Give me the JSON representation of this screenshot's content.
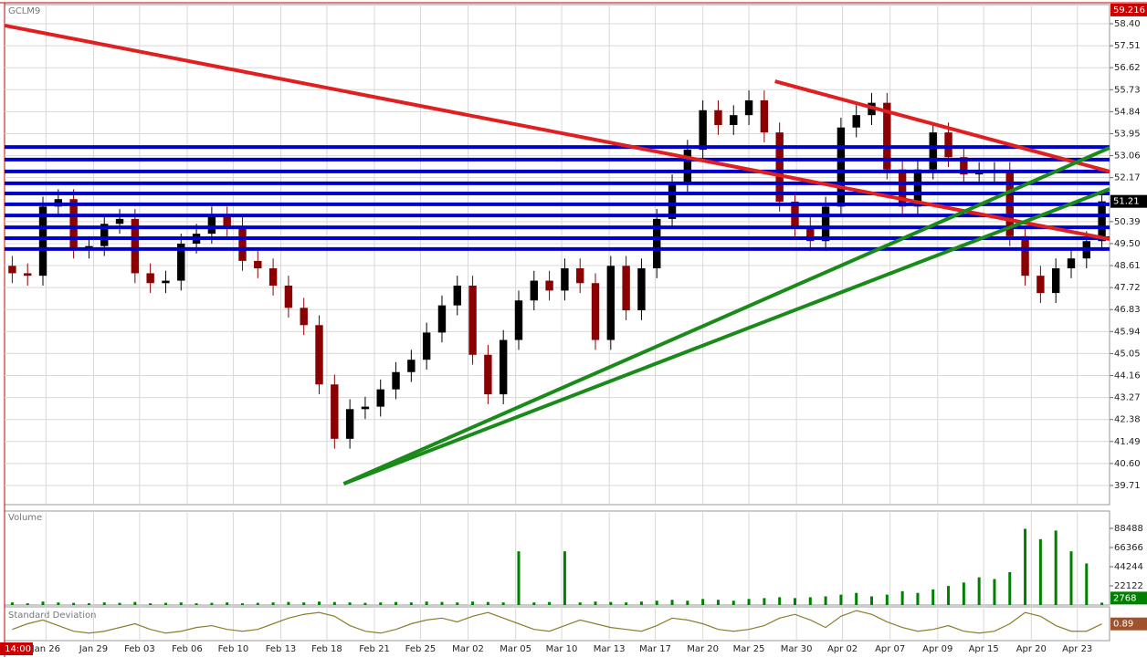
{
  "chart_data": {
    "type": "candlestick",
    "symbol": "GCLM9",
    "volume_title": "Volume",
    "std_title": "Standard Deviation",
    "cursor_label": "14:00",
    "top_value": 59.216,
    "last_price": 51.21,
    "last_volume": 2768,
    "last_std": 0.89,
    "up_color": "#000000",
    "down_color": "#8b0000",
    "grid": true,
    "ylim": [
      38.934,
      59.176
    ],
    "yticks": [
      {
        "value": 58.4,
        "label": "58.40"
      },
      57.51,
      56.62,
      55.73,
      54.84,
      53.95,
      53.06,
      52.17,
      50.39,
      {
        "value": 49.5,
        "label": "49.50"
      },
      48.61,
      47.72,
      46.83,
      45.94,
      45.05,
      44.16,
      43.27,
      42.38,
      41.49,
      {
        "value": 40.6,
        "label": "40.60"
      },
      39.71
    ],
    "xlim": [
      -0.5,
      71.5
    ],
    "xticks": [
      {
        "value": 2.2,
        "label": "Jan 26"
      },
      {
        "value": 5.3,
        "label": "Jan 29"
      },
      {
        "value": 8.3,
        "label": "Feb 03"
      },
      {
        "value": 11.4,
        "label": "Feb 06"
      },
      {
        "value": 14.4,
        "label": "Feb 10"
      },
      {
        "value": 17.5,
        "label": "Feb 13"
      },
      {
        "value": 20.5,
        "label": "Feb 18"
      },
      {
        "value": 23.6,
        "label": "Feb 21"
      },
      {
        "value": 26.6,
        "label": "Feb 25"
      },
      {
        "value": 29.7,
        "label": "Mar 02"
      },
      {
        "value": 32.8,
        "label": "Mar 05"
      },
      {
        "value": 35.8,
        "label": "Mar 10"
      },
      {
        "value": 38.9,
        "label": "Mar 13"
      },
      {
        "value": 41.9,
        "label": "Mar 17"
      },
      {
        "value": 45.0,
        "label": "Mar 20"
      },
      {
        "value": 48.0,
        "label": "Mar 25"
      },
      {
        "value": 51.1,
        "label": "Mar 30"
      },
      {
        "value": 54.1,
        "label": "Apr 02"
      },
      {
        "value": 57.2,
        "label": "Apr 07"
      },
      {
        "value": 60.3,
        "label": "Apr 09"
      },
      {
        "value": 63.3,
        "label": "Apr 15"
      },
      {
        "value": 66.4,
        "label": "Apr 20"
      },
      {
        "value": 69.4,
        "label": "Apr 23"
      }
    ],
    "ohlc": [
      [
        48.6,
        49.0,
        47.9,
        48.3
      ],
      [
        48.3,
        48.7,
        47.8,
        48.2
      ],
      [
        48.2,
        51.4,
        47.8,
        51.0
      ],
      [
        51.0,
        51.7,
        50.6,
        51.3
      ],
      [
        51.3,
        51.7,
        48.9,
        49.3
      ],
      [
        49.3,
        49.8,
        48.9,
        49.4
      ],
      [
        49.4,
        50.7,
        49.0,
        50.3
      ],
      [
        50.3,
        50.9,
        49.9,
        50.5
      ],
      [
        50.5,
        50.9,
        47.9,
        48.3
      ],
      [
        48.3,
        48.7,
        47.5,
        47.9
      ],
      [
        47.9,
        48.4,
        47.5,
        48.0
      ],
      [
        48.0,
        49.9,
        47.6,
        49.5
      ],
      [
        49.5,
        50.3,
        49.1,
        49.9
      ],
      [
        49.9,
        51.0,
        49.5,
        50.6
      ],
      [
        50.6,
        51.0,
        49.8,
        50.2
      ],
      [
        50.2,
        50.6,
        48.4,
        48.8
      ],
      [
        48.8,
        49.2,
        48.1,
        48.5
      ],
      [
        48.5,
        48.9,
        47.4,
        47.8
      ],
      [
        47.8,
        48.2,
        46.5,
        46.9
      ],
      [
        46.9,
        47.3,
        45.8,
        46.2
      ],
      [
        46.2,
        46.6,
        43.4,
        43.8
      ],
      [
        43.8,
        44.2,
        41.2,
        41.6
      ],
      [
        41.6,
        43.2,
        41.2,
        42.8
      ],
      [
        42.8,
        43.3,
        42.4,
        42.9
      ],
      [
        42.9,
        44.0,
        42.5,
        43.6
      ],
      [
        43.6,
        44.7,
        43.2,
        44.3
      ],
      [
        44.3,
        45.2,
        43.9,
        44.8
      ],
      [
        44.8,
        46.3,
        44.4,
        45.9
      ],
      [
        45.9,
        47.4,
        45.5,
        47.0
      ],
      [
        47.0,
        48.2,
        46.6,
        47.8
      ],
      [
        47.8,
        48.2,
        44.6,
        45.0
      ],
      [
        45.0,
        45.4,
        43.0,
        43.4
      ],
      [
        43.4,
        46.0,
        43.0,
        45.6
      ],
      [
        45.6,
        47.6,
        45.2,
        47.2
      ],
      [
        47.2,
        48.4,
        46.8,
        48.0
      ],
      [
        48.0,
        48.4,
        47.2,
        47.6
      ],
      [
        47.6,
        48.9,
        47.2,
        48.5
      ],
      [
        48.5,
        48.9,
        47.5,
        47.9
      ],
      [
        47.9,
        48.3,
        45.2,
        45.6
      ],
      [
        45.6,
        49.0,
        45.2,
        48.6
      ],
      [
        48.6,
        49.0,
        46.4,
        46.8
      ],
      [
        46.8,
        48.9,
        46.4,
        48.5
      ],
      [
        48.5,
        50.9,
        48.1,
        50.5
      ],
      [
        50.5,
        52.3,
        50.1,
        51.9
      ],
      [
        51.9,
        53.7,
        51.5,
        53.3
      ],
      [
        53.3,
        55.3,
        52.9,
        54.9
      ],
      [
        54.9,
        55.3,
        53.9,
        54.3
      ],
      [
        54.3,
        55.1,
        53.9,
        54.7
      ],
      [
        54.7,
        55.7,
        54.3,
        55.3
      ],
      [
        55.3,
        55.7,
        53.6,
        54.0
      ],
      [
        54.0,
        54.4,
        50.8,
        51.2
      ],
      [
        51.2,
        51.6,
        49.8,
        50.2
      ],
      [
        50.2,
        50.6,
        49.2,
        49.6
      ],
      [
        49.6,
        51.4,
        49.2,
        51.0
      ],
      [
        51.0,
        54.6,
        50.6,
        54.2
      ],
      [
        54.2,
        55.1,
        53.8,
        54.7
      ],
      [
        54.7,
        55.6,
        54.3,
        55.2
      ],
      [
        55.2,
        55.6,
        52.1,
        52.5
      ],
      [
        52.5,
        52.9,
        50.6,
        51.0
      ],
      [
        51.0,
        52.9,
        50.6,
        52.5
      ],
      [
        52.5,
        54.4,
        52.1,
        54.0
      ],
      [
        54.0,
        54.4,
        52.6,
        53.0
      ],
      [
        53.0,
        53.4,
        51.9,
        52.3
      ],
      [
        52.3,
        52.8,
        51.9,
        52.4
      ],
      [
        52.4,
        52.8,
        52.0,
        52.4
      ],
      [
        52.4,
        52.8,
        49.4,
        49.8
      ],
      [
        49.8,
        50.2,
        47.8,
        48.2
      ],
      [
        48.2,
        48.6,
        47.1,
        47.5
      ],
      [
        47.5,
        48.9,
        47.1,
        48.5
      ],
      [
        48.5,
        49.3,
        48.1,
        48.9
      ],
      [
        48.9,
        50.0,
        48.5,
        49.6
      ],
      [
        49.6,
        51.6,
        49.2,
        51.21
      ]
    ],
    "levels": {
      "color": "#0000cc",
      "values": [
        53.41,
        52.9,
        52.42,
        51.94,
        51.53,
        51.09,
        50.64,
        50.16,
        49.72,
        49.28
      ]
    },
    "trendlines": [
      {
        "color": "#e02020",
        "x": [
          -0.5,
          71.5
        ],
        "y": [
          58.33,
          49.68
        ]
      },
      {
        "color": "#e02020",
        "x": [
          49.7,
          71.5
        ],
        "y": [
          56.07,
          52.42
        ]
      },
      {
        "color": "#1a8a1a",
        "x": [
          21.6,
          71.5
        ],
        "y": [
          39.78,
          53.38
        ]
      },
      {
        "color": "#1a8a1a",
        "x": [
          21.6,
          71.5
        ],
        "y": [
          39.78,
          51.71
        ]
      }
    ],
    "volume": {
      "color": "#008000",
      "ylim": [
        0,
        108500
      ],
      "yticks": [
        88488,
        66366,
        44244,
        22122
      ],
      "values": [
        3000,
        2000,
        4000,
        3000,
        2500,
        2000,
        3000,
        2500,
        3500,
        2000,
        2500,
        3000,
        2000,
        2500,
        3000,
        2000,
        2500,
        3000,
        3500,
        3000,
        4000,
        3500,
        3000,
        2500,
        3000,
        3500,
        3000,
        4000,
        3500,
        3000,
        4000,
        3500,
        3000,
        62000,
        3000,
        3500,
        62000,
        3000,
        4000,
        3500,
        3000,
        4000,
        5000,
        6000,
        5000,
        7000,
        6000,
        5000,
        7000,
        8000,
        9000,
        8000,
        9000,
        10000,
        12000,
        14000,
        10000,
        12000,
        16000,
        14000,
        18000,
        22000,
        26000,
        32000,
        30000,
        38000,
        88000,
        76000,
        86000,
        62000,
        48000,
        2768
      ]
    },
    "std": {
      "color": "#8b7d2a",
      "ylim": [
        0,
        1.8
      ],
      "values": [
        0.6,
        0.9,
        1.1,
        0.8,
        0.5,
        0.4,
        0.5,
        0.7,
        0.9,
        0.6,
        0.4,
        0.5,
        0.7,
        0.8,
        0.6,
        0.5,
        0.6,
        0.9,
        1.2,
        1.4,
        1.5,
        1.3,
        0.8,
        0.5,
        0.4,
        0.6,
        0.9,
        1.1,
        1.2,
        1.0,
        1.3,
        1.5,
        1.2,
        0.9,
        0.6,
        0.5,
        0.8,
        1.1,
        0.9,
        0.7,
        0.6,
        0.5,
        0.8,
        1.2,
        1.1,
        0.9,
        0.6,
        0.5,
        0.6,
        0.8,
        1.2,
        1.4,
        1.1,
        0.7,
        1.3,
        1.6,
        1.4,
        1.0,
        0.7,
        0.5,
        0.6,
        0.8,
        0.5,
        0.4,
        0.5,
        0.9,
        1.5,
        1.3,
        0.8,
        0.5,
        0.5,
        0.89
      ]
    }
  }
}
